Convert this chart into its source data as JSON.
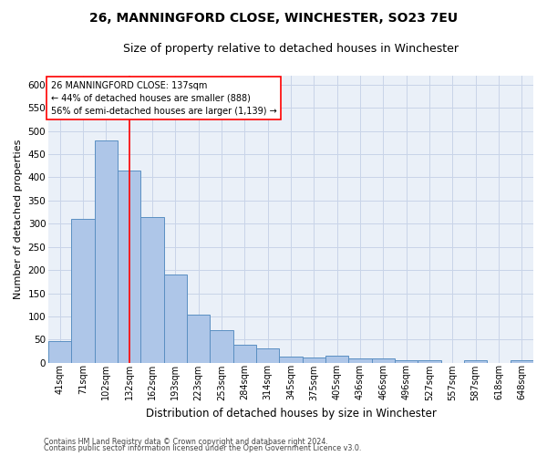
{
  "title": "26, MANNINGFORD CLOSE, WINCHESTER, SO23 7EU",
  "subtitle": "Size of property relative to detached houses in Winchester",
  "xlabel": "Distribution of detached houses by size in Winchester",
  "ylabel": "Number of detached properties",
  "categories": [
    "41sqm",
    "71sqm",
    "102sqm",
    "132sqm",
    "162sqm",
    "193sqm",
    "223sqm",
    "253sqm",
    "284sqm",
    "314sqm",
    "345sqm",
    "375sqm",
    "405sqm",
    "436sqm",
    "466sqm",
    "496sqm",
    "527sqm",
    "557sqm",
    "587sqm",
    "618sqm",
    "648sqm"
  ],
  "values": [
    47,
    310,
    480,
    415,
    315,
    190,
    103,
    70,
    38,
    32,
    14,
    12,
    15,
    10,
    10,
    5,
    5,
    0,
    5,
    0,
    5
  ],
  "bar_color": "#aec6e8",
  "bar_edgecolor": "#5a8fc2",
  "red_line_index": 3,
  "annotation_line1": "26 MANNINGFORD CLOSE: 137sqm",
  "annotation_line2": "← 44% of detached houses are smaller (888)",
  "annotation_line3": "56% of semi-detached houses are larger (1,139) →",
  "ylim": [
    0,
    620
  ],
  "yticks": [
    0,
    50,
    100,
    150,
    200,
    250,
    300,
    350,
    400,
    450,
    500,
    550,
    600
  ],
  "footnote1": "Contains HM Land Registry data © Crown copyright and database right 2024.",
  "footnote2": "Contains public sector information licensed under the Open Government Licence v3.0.",
  "background_color": "#ffffff",
  "ax_background": "#eaf0f8",
  "grid_color": "#c8d4e8",
  "title_fontsize": 10,
  "subtitle_fontsize": 9,
  "annotation_fontsize": 7,
  "ylabel_fontsize": 8,
  "xlabel_fontsize": 8.5,
  "tick_fontsize": 7
}
